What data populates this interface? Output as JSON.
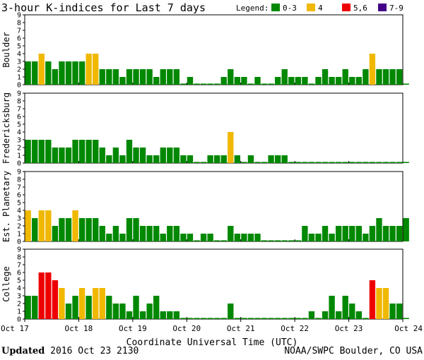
{
  "title": "3-hour K-indices for Last 7 days",
  "legend_label": "Legend:",
  "colors": {
    "quiet": "#008800",
    "active": "#f0b800",
    "storm": "#ee0000",
    "severe": "#440088",
    "grid": "#000000",
    "background": "#ffffff"
  },
  "chart_data": {
    "type": "bar",
    "title": "3-hour K-indices for Last 7 days",
    "xlabel": "Coordinate Universal Time (UTC)",
    "ylabel": "",
    "ylim": [
      0,
      9
    ],
    "yticks": [
      "0",
      "1",
      "2",
      "3",
      "4",
      "5",
      "6",
      "7",
      "8",
      "9"
    ],
    "xticks": [
      "Oct 17",
      "Oct 18",
      "Oct 19",
      "Oct 20",
      "Oct 21",
      "Oct 22",
      "Oct 23",
      "Oct 24"
    ],
    "legend": [
      {
        "label": "0-3",
        "color": "#008800"
      },
      {
        "label": "4",
        "color": "#f0b800"
      },
      {
        "label": "5,6",
        "color": "#ee0000"
      },
      {
        "label": "7-9",
        "color": "#440088"
      }
    ],
    "legend_placement": "top-right",
    "bins_per_day": 8,
    "grid": false,
    "series": [
      {
        "name": "Boulder",
        "values": [
          3,
          3,
          4,
          3,
          2,
          3,
          3,
          3,
          3,
          4,
          4,
          2,
          2,
          2,
          1,
          2,
          2,
          2,
          2,
          1,
          2,
          2,
          2,
          0,
          1,
          0,
          0,
          0,
          0,
          1,
          2,
          1,
          1,
          0,
          1,
          0,
          0,
          1,
          2,
          1,
          1,
          1,
          0,
          1,
          2,
          1,
          1,
          2,
          1,
          1,
          2,
          4,
          2,
          2,
          2,
          2,
          0
        ]
      },
      {
        "name": "Fredericksburg",
        "values": [
          3,
          3,
          3,
          3,
          2,
          2,
          2,
          3,
          3,
          3,
          3,
          2,
          1,
          2,
          1,
          3,
          2,
          2,
          1,
          1,
          2,
          2,
          2,
          1,
          1,
          0,
          0,
          1,
          1,
          1,
          4,
          1,
          0,
          1,
          0,
          0,
          1,
          1,
          1,
          0,
          0,
          0,
          0,
          0,
          0,
          0,
          0,
          0,
          0,
          0,
          0,
          0,
          0,
          0,
          0,
          0,
          0
        ]
      },
      {
        "name": "Est. Planetary",
        "values": [
          4,
          3,
          4,
          4,
          2,
          3,
          3,
          4,
          3,
          3,
          3,
          2,
          1,
          2,
          1,
          3,
          3,
          2,
          2,
          2,
          1,
          2,
          2,
          1,
          1,
          0,
          1,
          1,
          0,
          0,
          2,
          1,
          1,
          1,
          1,
          0,
          0,
          0,
          0,
          0,
          0,
          2,
          1,
          1,
          2,
          1,
          2,
          2,
          2,
          2,
          1,
          2,
          3,
          2,
          2,
          2,
          3
        ]
      },
      {
        "name": "College",
        "values": [
          3,
          3,
          6,
          6,
          5,
          4,
          2,
          3,
          4,
          3,
          4,
          4,
          3,
          2,
          2,
          1,
          3,
          1,
          2,
          3,
          1,
          1,
          1,
          0,
          0,
          0,
          0,
          0,
          0,
          0,
          2,
          0,
          0,
          0,
          0,
          0,
          0,
          0,
          0,
          0,
          0,
          0,
          1,
          0,
          1,
          3,
          1,
          3,
          2,
          1,
          0,
          5,
          4,
          4,
          2,
          2,
          0
        ]
      }
    ]
  },
  "footer": {
    "updated_label": "Updated",
    "updated_value": "2016 Oct 23 2130",
    "source": "NOAA/SWPC Boulder, CO USA"
  }
}
